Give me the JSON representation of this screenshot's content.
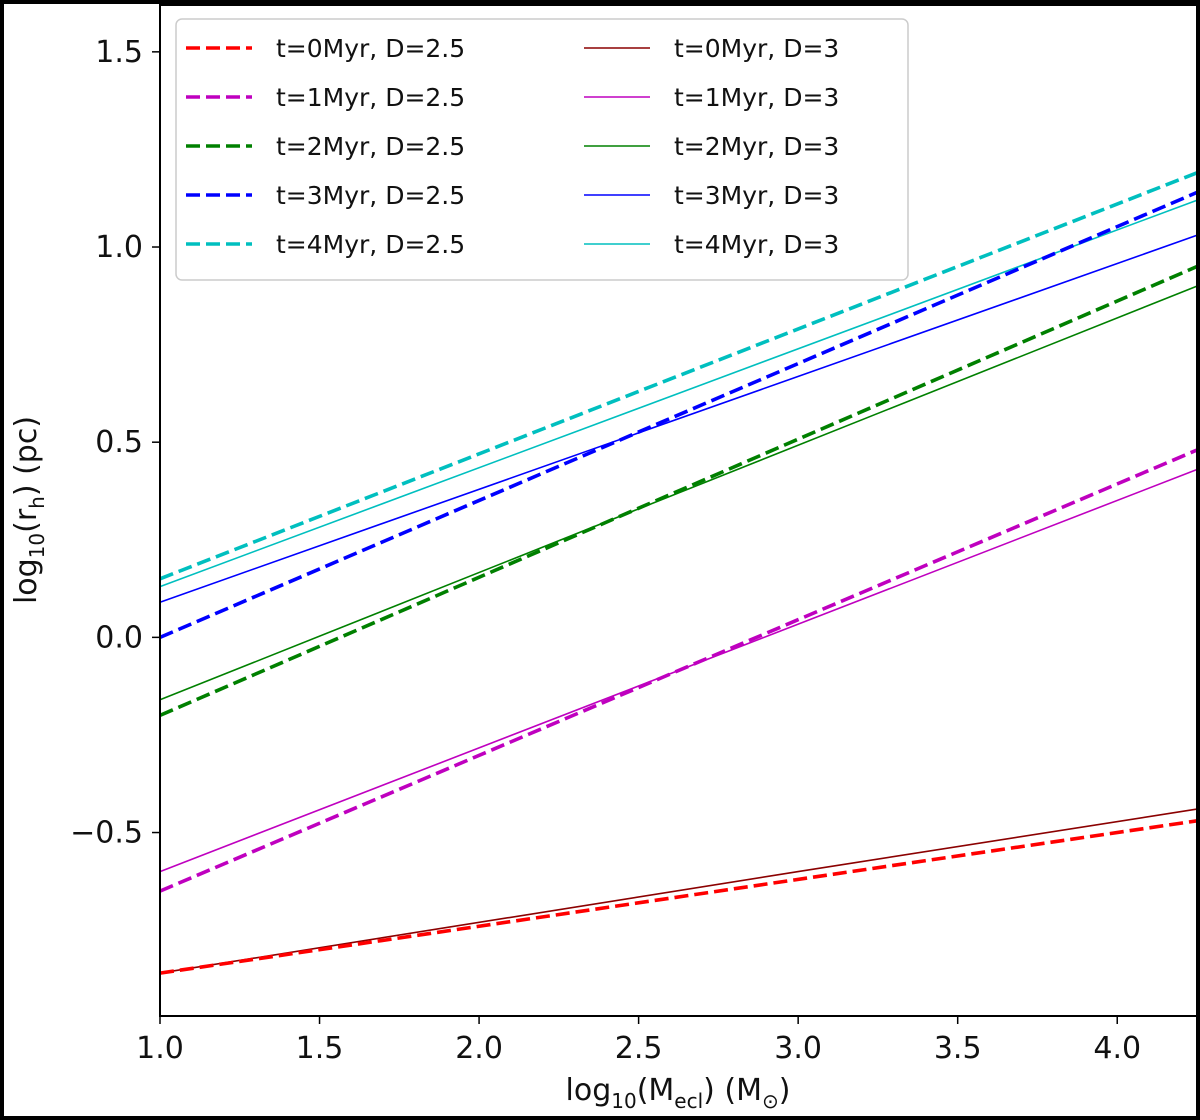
{
  "chart_data": {
    "type": "line",
    "xlabel": {
      "base": "log",
      "sub": "10",
      "mid": "(M",
      "sub2": "ecl",
      "tail": ") (M",
      "sun": "⊙",
      "close": ")"
    },
    "ylabel": {
      "base": "log",
      "sub": "10",
      "mid": "(r",
      "sub2": "h",
      "tail": ") (pc)"
    },
    "xlim": [
      1.0,
      4.25
    ],
    "ylim": [
      -0.97,
      1.62
    ],
    "xticks": [
      "1.0",
      "1.5",
      "2.0",
      "2.5",
      "3.0",
      "3.5",
      "4.0"
    ],
    "yticks": [
      "−0.5",
      "0.0",
      "0.5",
      "1.0",
      "1.5"
    ],
    "xtick_values": [
      1.0,
      1.5,
      2.0,
      2.5,
      3.0,
      3.5,
      4.0
    ],
    "ytick_values": [
      -0.5,
      0.0,
      0.5,
      1.0,
      1.5
    ],
    "grid": false,
    "legend_position": "top-left",
    "series": [
      {
        "name": "t=0Myr, D=2.5",
        "color": "#ff0000",
        "style": "dashed",
        "x": [
          1.0,
          4.25
        ],
        "y": [
          -0.86,
          -0.47
        ]
      },
      {
        "name": "t=1Myr, D=2.5",
        "color": "#bf00bf",
        "style": "dashed",
        "x": [
          1.0,
          4.25
        ],
        "y": [
          -0.65,
          0.48
        ]
      },
      {
        "name": "t=2Myr, D=2.5",
        "color": "#008000",
        "style": "dashed",
        "x": [
          1.0,
          4.25
        ],
        "y": [
          -0.2,
          0.95
        ]
      },
      {
        "name": "t=3Myr, D=2.5",
        "color": "#0000ff",
        "style": "dashed",
        "x": [
          1.0,
          4.25
        ],
        "y": [
          0.0,
          1.14
        ]
      },
      {
        "name": "t=4Myr, D=2.5",
        "color": "#00bfbf",
        "style": "dashed",
        "x": [
          1.0,
          4.25
        ],
        "y": [
          0.15,
          1.19
        ]
      },
      {
        "name": "t=0Myr, D=3",
        "color": "#8b0000",
        "style": "solid",
        "x": [
          1.0,
          3.0,
          4.25
        ],
        "y": [
          -0.86,
          -0.6,
          -0.44
        ]
      },
      {
        "name": "t=1Myr, D=3",
        "color": "#bf00bf",
        "style": "solid",
        "x": [
          1.0,
          4.25
        ],
        "y": [
          -0.6,
          0.43
        ]
      },
      {
        "name": "t=2Myr, D=3",
        "color": "#008000",
        "style": "solid",
        "x": [
          1.0,
          4.25
        ],
        "y": [
          -0.16,
          0.9
        ]
      },
      {
        "name": "t=3Myr, D=3",
        "color": "#0000ff",
        "style": "solid",
        "x": [
          1.0,
          4.25
        ],
        "y": [
          0.09,
          1.03
        ]
      },
      {
        "name": "t=4Myr, D=3",
        "color": "#00bfbf",
        "style": "solid",
        "x": [
          1.0,
          4.25
        ],
        "y": [
          0.13,
          1.12
        ]
      }
    ]
  }
}
